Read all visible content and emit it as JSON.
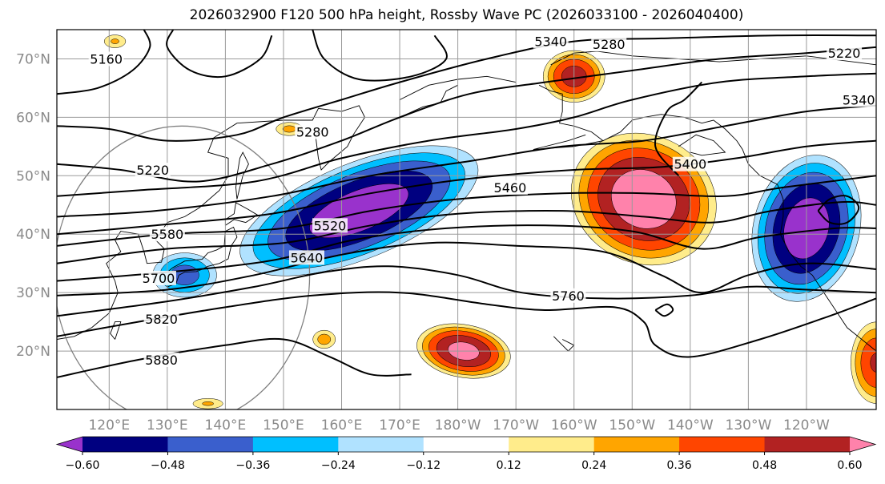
{
  "title": "2026032900 F120 500 hPa height, Rossby Wave PC (2026033100 - 2026040400)",
  "chart_data": {
    "type": "map-contour",
    "map": {
      "lon_range": [
        111,
        252
      ],
      "lat_range": [
        10,
        75
      ],
      "lat_ticks": [
        20,
        30,
        40,
        50,
        60,
        70
      ],
      "lat_labels": [
        "20°N",
        "30°N",
        "40°N",
        "50°N",
        "60°N",
        "70°N"
      ],
      "lon_ticks": [
        120,
        130,
        140,
        150,
        160,
        170,
        180,
        190,
        200,
        210,
        220,
        230,
        240
      ],
      "lon_labels": [
        "120°E",
        "130°E",
        "140°E",
        "150°E",
        "160°E",
        "170°E",
        "180°W",
        "170°W",
        "160°W",
        "150°W",
        "140°W",
        "130°W",
        "120°W"
      ],
      "grid": true
    },
    "height_contours": {
      "variable": "500 hPa height",
      "labels": [
        {
          "text": "5160",
          "lon": 119.5,
          "lat": 70
        },
        {
          "text": "5220",
          "lon": 127.5,
          "lat": 51
        },
        {
          "text": "5280",
          "lon": 155,
          "lat": 57.5
        },
        {
          "text": "5340",
          "lon": 196,
          "lat": 73
        },
        {
          "text": "5280",
          "lon": 206,
          "lat": 72.5
        },
        {
          "text": "5220",
          "lon": 246.5,
          "lat": 71
        },
        {
          "text": "5340",
          "lon": 249,
          "lat": 63
        },
        {
          "text": "5400",
          "lon": 220,
          "lat": 52
        },
        {
          "text": "5460",
          "lon": 189,
          "lat": 48
        },
        {
          "text": "5520",
          "lon": 158,
          "lat": 41.5
        },
        {
          "text": "5580",
          "lon": 130,
          "lat": 40
        },
        {
          "text": "5640",
          "lon": 154,
          "lat": 36
        },
        {
          "text": "5700",
          "lon": 128.5,
          "lat": 32.5
        },
        {
          "text": "5760",
          "lon": 199,
          "lat": 29.5
        },
        {
          "text": "5820",
          "lon": 129,
          "lat": 25.5
        },
        {
          "text": "5880",
          "lon": 129,
          "lat": 18.5
        }
      ]
    },
    "shading": {
      "variable": "Rossby Wave PC",
      "levels": [
        -0.6,
        -0.48,
        -0.36,
        -0.24,
        -0.12,
        0.12,
        0.24,
        0.36,
        0.48,
        0.6
      ],
      "colors": [
        "#9932cc",
        "#000080",
        "#3a5fcd",
        "#00bfff",
        "#b0e2ff",
        "#ffffff",
        "#ffec8b",
        "#ffa500",
        "#ff4500",
        "#b22222",
        "#ff82ab"
      ],
      "extend": "both",
      "colorbar_labels": [
        "−0.60",
        "−0.48",
        "−0.36",
        "−0.24",
        "−0.12",
        "0.12",
        "0.24",
        "0.36",
        "0.48",
        "0.60"
      ],
      "anomalies": [
        {
          "sign": "negative",
          "peak": -0.7,
          "lon": 163,
          "lat": 44,
          "lon_radius": 24,
          "lat_radius": 9,
          "tilt": -22
        },
        {
          "sign": "negative",
          "peak": -0.7,
          "lon": 240,
          "lat": 41,
          "lon_radius": 10,
          "lat_radius": 14,
          "tilt": 15
        },
        {
          "sign": "negative",
          "peak": -0.42,
          "lon": 133,
          "lat": 33,
          "lon_radius": 6.5,
          "lat_radius": 4.5,
          "tilt": 0
        },
        {
          "sign": "positive",
          "peak": 0.72,
          "lon": 212,
          "lat": 46,
          "lon_radius": 14,
          "lat_radius": 12,
          "tilt": 25
        },
        {
          "sign": "positive",
          "peak": 0.55,
          "lon": 200,
          "lat": 67,
          "lon_radius": 6,
          "lat_radius": 5,
          "tilt": 0
        },
        {
          "sign": "positive",
          "peak": 0.66,
          "lon": 181,
          "lat": 20,
          "lon_radius": 9,
          "lat_radius": 5,
          "tilt": 10
        },
        {
          "sign": "positive",
          "peak": 0.5,
          "lon": 252,
          "lat": 18,
          "lon_radius": 5,
          "lat_radius": 8,
          "tilt": 0
        },
        {
          "sign": "positive",
          "peak": 0.3,
          "lon": 157,
          "lat": 22,
          "lon_radius": 2.5,
          "lat_radius": 2,
          "tilt": 0
        },
        {
          "sign": "positive",
          "peak": 0.28,
          "lon": 151,
          "lat": 58,
          "lon_radius": 3,
          "lat_radius": 1.5,
          "tilt": 0
        },
        {
          "sign": "positive",
          "peak": 0.26,
          "lon": 121,
          "lat": 73,
          "lon_radius": 2.5,
          "lat_radius": 1.5,
          "tilt": 0
        },
        {
          "sign": "positive",
          "peak": 0.26,
          "lon": 137,
          "lat": 11,
          "lon_radius": 3.5,
          "lat_radius": 1.2,
          "tilt": 0
        }
      ]
    }
  }
}
